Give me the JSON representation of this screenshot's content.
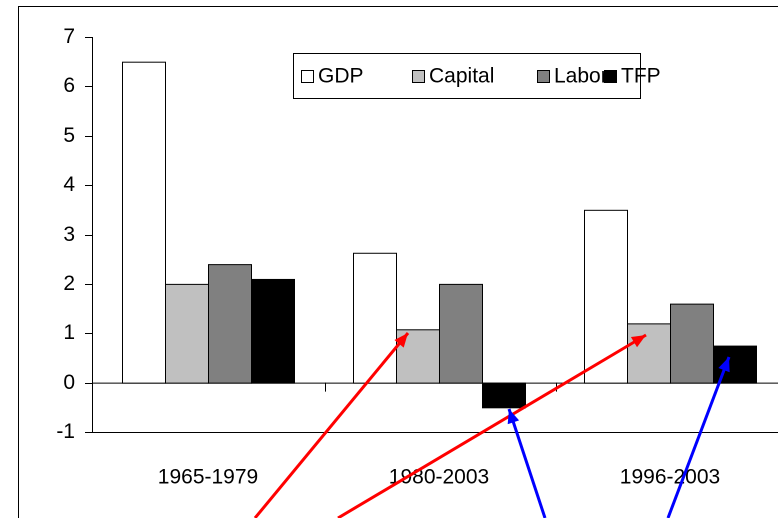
{
  "chart_data": {
    "type": "bar",
    "categories": [
      "1965-1979",
      "1980-2003",
      "1996-2003"
    ],
    "series": [
      {
        "name": "GDP",
        "color": "#ffffff",
        "values": [
          6.5,
          2.63,
          3.5
        ]
      },
      {
        "name": "Capital",
        "color": "#c0c0c0",
        "values": [
          2.0,
          1.08,
          1.2
        ]
      },
      {
        "name": "Labor",
        "color": "#808080",
        "values": [
          2.4,
          2.0,
          1.6
        ]
      },
      {
        "name": "TFP",
        "color": "#000000",
        "values": [
          2.1,
          -0.5,
          0.75
        ]
      }
    ],
    "ylim": [
      -1,
      7
    ],
    "yticks": [
      -1,
      0,
      1,
      2,
      3,
      4,
      5,
      6,
      7
    ],
    "legend": "top-right"
  }
}
